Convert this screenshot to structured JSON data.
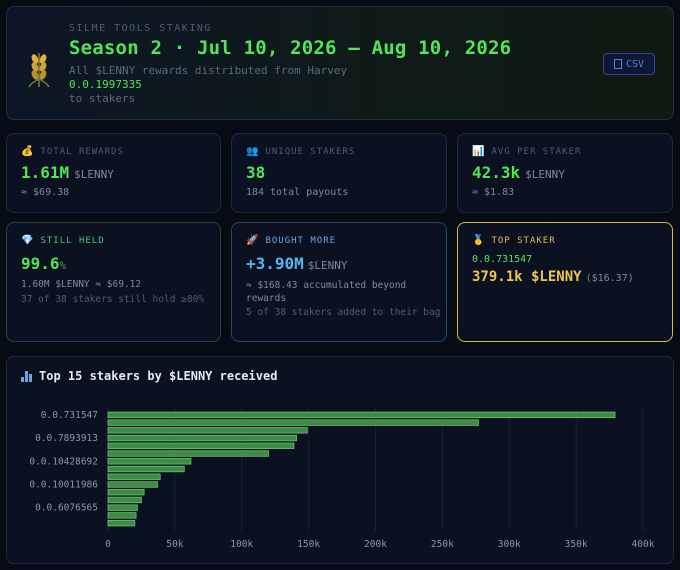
{
  "header": {
    "kicker": "SILME TOOLS STAKING",
    "title": "Season 2 · Jul 10, 2026 – Aug 10, 2026",
    "desc_line1": "All $LENNY rewards distributed from Harvey",
    "amount": "0.0.1997335",
    "desc_line2": "to stakers",
    "csv_label": "CSV",
    "logo_icon": "wheat-icon"
  },
  "stats": {
    "total_rewards": {
      "label": "TOTAL REWARDS",
      "icon": "💰",
      "value": "1.61M",
      "unit": "$LENNY",
      "sub": "≈ $69.38"
    },
    "unique_stakers": {
      "label": "UNIQUE STAKERS",
      "icon": "👥",
      "value": "38",
      "sub": "184 total payouts"
    },
    "avg_per_staker": {
      "label": "AVG PER STAKER",
      "icon": "📊",
      "value": "42.3k",
      "unit": "$LENNY",
      "sub": "≈ $1.83"
    }
  },
  "still_held": {
    "label": "STILL HELD",
    "icon": "💎",
    "value": "99.6",
    "pct": "%",
    "line1": "1.60M $LENNY ≈ $69.12",
    "line2": "37 of 38 stakers still hold ≥80%"
  },
  "bought_more": {
    "label": "BOUGHT MORE",
    "icon": "🚀",
    "value": "+3.90M",
    "unit": "$LENNY",
    "line1": "≈ $168.43 accumulated beyond rewards",
    "line2": "5 of 38 stakers added to their bag"
  },
  "top_staker": {
    "label": "TOP STAKER",
    "icon": "🥇",
    "address": "0.0.731547",
    "amount": "379.1k $LENNY",
    "usd": "($16.37)"
  },
  "colors": {
    "green": "#54e45a",
    "blue": "#54b4ee",
    "gold": "#ecc652",
    "bar_fill": "#3f8a47",
    "bar_stroke": "#66c46d"
  },
  "chart_data": {
    "type": "bar",
    "orientation": "horizontal",
    "title": "Top 15 stakers by $LENNY received",
    "y_tick_labels": [
      "0.0.731547",
      "0.0.7893913",
      "0.0.10428692",
      "0.0.10011986",
      "0.0.6076565"
    ],
    "y_tick_rows": [
      0,
      3,
      6,
      9,
      12
    ],
    "values": [
      379100,
      277000,
      149000,
      141000,
      139000,
      120000,
      62000,
      57000,
      39000,
      37000,
      27000,
      25000,
      22000,
      21000,
      20000
    ],
    "x_ticks": [
      "0",
      "50k",
      "100k",
      "150k",
      "200k",
      "250k",
      "300k",
      "350k",
      "400k"
    ],
    "x_tick_values": [
      0,
      50000,
      100000,
      150000,
      200000,
      250000,
      300000,
      350000,
      400000
    ],
    "xlim": [
      0,
      400000
    ],
    "grid": true
  }
}
